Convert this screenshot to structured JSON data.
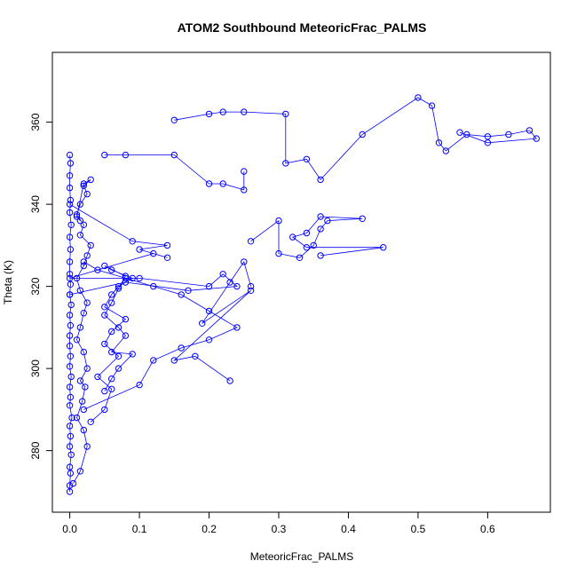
{
  "chart_data": {
    "type": "scatter",
    "title": "ATOM2 Southbound MeteoricFrac_PALMS",
    "xlabel": "MeteoricFrac_PALMS",
    "ylabel": "Theta (K)",
    "xlim": [
      -0.025,
      0.69
    ],
    "ylim": [
      265,
      377
    ],
    "xticks": [
      0.0,
      0.1,
      0.2,
      0.3,
      0.4,
      0.5,
      0.6
    ],
    "xtick_labels": [
      "0.0",
      "0.1",
      "0.2",
      "0.3",
      "0.4",
      "0.5",
      "0.6"
    ],
    "yticks": [
      280,
      300,
      320,
      340,
      360
    ],
    "ytick_labels": [
      "280",
      "300",
      "320",
      "340",
      "360"
    ],
    "grid": false,
    "legend": "none",
    "marker": "open-circle",
    "connected": true,
    "color": "#0000ff",
    "series": [
      {
        "x": [
          0.0,
          0.0,
          0.001,
          0.0,
          0.002,
          0.0,
          0.001,
          0.0,
          0.003,
          0.0,
          0.001,
          0.0,
          0.002,
          0.0,
          0.001,
          0.0,
          0.0,
          0.001,
          0.0,
          0.002,
          0.0,
          0.001,
          0.0,
          0.0,
          0.001,
          0.0,
          0.002,
          0.0,
          0.001,
          0.0,
          0.0,
          0.001,
          0.0
        ],
        "y": [
          270.0,
          271.5,
          274.5,
          276.0,
          279.0,
          281.0,
          283.5,
          286.0,
          288.0,
          291.0,
          293.0,
          295.5,
          298.0,
          300.5,
          303.0,
          305.5,
          308.0,
          310.5,
          313.0,
          315.5,
          318.0,
          320.5,
          323.0,
          326.0,
          329.0,
          332.0,
          335.0,
          338.0,
          341.0,
          344.0,
          347.0,
          350.0,
          352.0
        ]
      },
      {
        "x": [
          0.005,
          0.015,
          0.025,
          0.02,
          0.01,
          0.018,
          0.022,
          0.015,
          0.025,
          0.02,
          0.01,
          0.015,
          0.02,
          0.025,
          0.015,
          0.01,
          0.02,
          0.025,
          0.03,
          0.015,
          0.02,
          0.01,
          0.015,
          0.025,
          0.02,
          0.03,
          0.02,
          0.01,
          0.015
        ],
        "y": [
          272.0,
          275.0,
          281.0,
          285.0,
          288.0,
          292.0,
          295.5,
          297.0,
          300.0,
          304.0,
          307.0,
          310.0,
          313.5,
          316.0,
          319.0,
          322.0,
          325.0,
          327.5,
          330.0,
          332.5,
          335.0,
          337.5,
          340.0,
          342.5,
          344.5,
          346.0,
          345.0,
          337.0,
          336.0
        ]
      },
      {
        "x": [
          0.03,
          0.05,
          0.06,
          0.04,
          0.07,
          0.05,
          0.06,
          0.08,
          0.05,
          0.06,
          0.07,
          0.09,
          0.06,
          0.05,
          0.08,
          0.07,
          0.06,
          0.05,
          0.07,
          0.08,
          0.06,
          0.09,
          0.07,
          0.06,
          0.05
        ],
        "y": [
          287.0,
          290.0,
          295.0,
          298.0,
          303.0,
          306.0,
          309.0,
          312.0,
          315.0,
          318.0,
          320.0,
          322.0,
          324.0,
          325.0,
          322.5,
          319.5,
          316.0,
          313.0,
          310.0,
          308.0,
          304.0,
          303.5,
          300.0,
          297.5,
          294.5
        ]
      },
      {
        "x": [
          0.02,
          0.1,
          0.12,
          0.16,
          0.2,
          0.24,
          0.2,
          0.16,
          0.12,
          0.08,
          0.04,
          0.02
        ],
        "y": [
          290.0,
          296.0,
          302.0,
          305.0,
          307.0,
          310.0,
          314.0,
          318.0,
          320.0,
          322.0,
          324.0,
          326.0
        ]
      },
      {
        "x": [
          0.0,
          0.09,
          0.14,
          0.1,
          0.14,
          0.12,
          0.0,
          0.1,
          0.2,
          0.22,
          0.24,
          0.17,
          0.08,
          0.0
        ],
        "y": [
          340.0,
          331.0,
          330.0,
          329.0,
          327.0,
          328.0,
          322.0,
          322.0,
          320.0,
          323.0,
          320.0,
          319.0,
          321.0,
          318.0
        ]
      },
      {
        "x": [
          0.26,
          0.3,
          0.3,
          0.33,
          0.35,
          0.36,
          0.37,
          0.42,
          0.36,
          0.34,
          0.32,
          0.34,
          0.45,
          0.36
        ],
        "y": [
          331.0,
          336.0,
          328.0,
          327.0,
          330.0,
          334.0,
          336.0,
          336.5,
          337.0,
          333.0,
          332.0,
          329.5,
          329.5,
          327.5
        ]
      },
      {
        "x": [
          0.05,
          0.08,
          0.15,
          0.2,
          0.22,
          0.25,
          0.25
        ],
        "y": [
          352.0,
          352.0,
          352.0,
          345.0,
          345.0,
          343.5,
          348.0
        ]
      },
      {
        "x": [
          0.15,
          0.2,
          0.22,
          0.25,
          0.31,
          0.31,
          0.34,
          0.36,
          0.42,
          0.5,
          0.52,
          0.53,
          0.54,
          0.57,
          0.6,
          0.63,
          0.66,
          0.67,
          0.6,
          0.56
        ],
        "y": [
          360.5,
          362.0,
          362.5,
          362.5,
          362.0,
          350.0,
          351.0,
          346.0,
          357.0,
          366.0,
          364.0,
          355.0,
          353.0,
          357.0,
          356.5,
          357.0,
          358.0,
          356.0,
          355.0,
          357.5
        ]
      },
      {
        "x": [
          0.23,
          0.18,
          0.15,
          0.26,
          0.19,
          0.23,
          0.25,
          0.26
        ],
        "y": [
          297.0,
          303.0,
          302.0,
          319.0,
          311.0,
          321.0,
          326.0,
          320.0
        ]
      }
    ]
  }
}
